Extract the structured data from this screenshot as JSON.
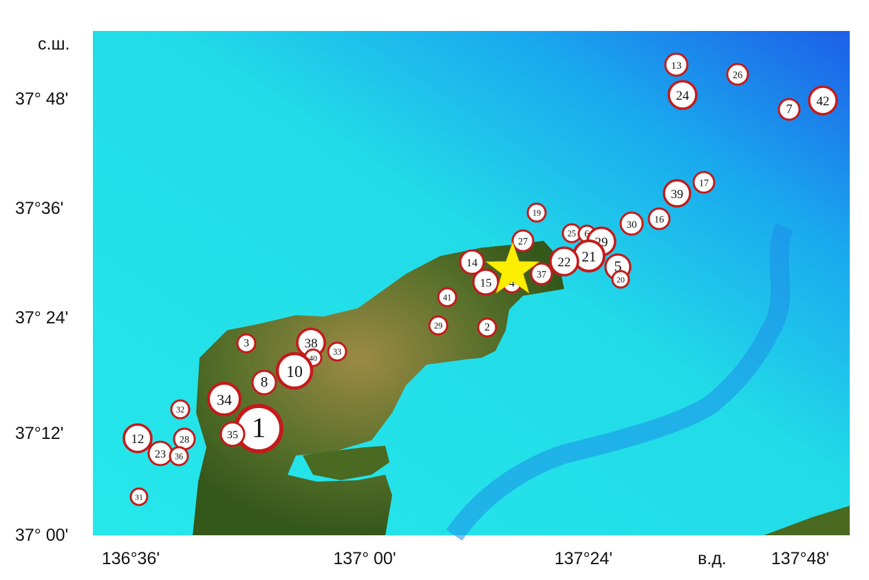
{
  "axes": {
    "lat_label": "с.ш.",
    "lon_label": "в.д.",
    "lat_ticks": [
      "37° 48'",
      "37°36'",
      "37° 24'",
      "37°12'",
      "37° 00'"
    ],
    "lon_ticks": [
      "136°36'",
      "137° 00'",
      "137°24'",
      "137°48'"
    ]
  },
  "colors": {
    "sea_shallow": "#22e6e8",
    "sea_deep": "#1f6ff0",
    "land_low": "#3f5e1c",
    "land_high": "#b59a4c",
    "marker_ring": "#c41a1a",
    "marker_fill": "#ffffff",
    "epicenter_star": "#ffee00"
  },
  "epicenter": {
    "icon": "star-icon"
  },
  "events": [
    "13",
    "26",
    "24",
    "7",
    "42",
    "17",
    "39",
    "16",
    "30",
    "19",
    "25",
    "6",
    "29",
    "21",
    "22",
    "5",
    "20",
    "27",
    "14",
    "15",
    "4",
    "37",
    "41",
    "29",
    "2",
    "3",
    "38",
    "40",
    "33",
    "10",
    "8",
    "34",
    "32",
    "1",
    "35",
    "12",
    "23",
    "28",
    "36",
    "31"
  ]
}
